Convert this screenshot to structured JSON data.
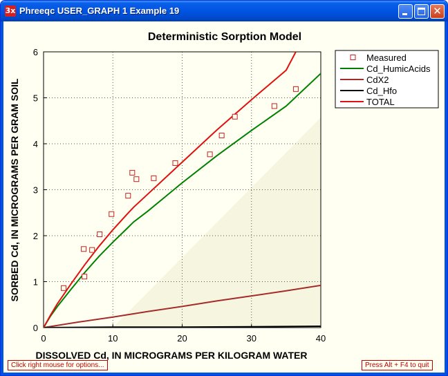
{
  "window": {
    "icon_text": "3x",
    "title": "Phreeqc USER_GRAPH 1 Example 19"
  },
  "status": {
    "left": "Click right mouse for options...",
    "right": "Press Alt + F4 to quit"
  },
  "colors": {
    "background": "#fffff2",
    "measured": "#c81e1e",
    "humic": "#008000",
    "cdx2": "#a52a2a",
    "hfo": "#000000",
    "total": "#e01010",
    "shade": "#f6f6e0"
  },
  "chart_data": {
    "type": "line",
    "title": "Deterministic Sorption Model",
    "xlabel": "DISSOLVED Cd, IN MICROGRAMS PER KILOGRAM WATER",
    "ylabel": "SORBED Cd, IN MICROGRAMS PER GRAM SOIL",
    "xlim": [
      0,
      40
    ],
    "ylim": [
      0,
      6
    ],
    "xticks": [
      0,
      10,
      20,
      30,
      40
    ],
    "yticks": [
      0,
      1,
      2,
      3,
      4,
      5,
      6
    ],
    "grid": true,
    "legend_position": "top-right outside",
    "series": [
      {
        "name": "Measured",
        "kind": "markers",
        "color": "#c81e1e",
        "x": [
          2.9,
          5.8,
          5.9,
          7.0,
          8.1,
          9.8,
          12.2,
          12.8,
          13.4,
          15.9,
          19.0,
          24.0,
          25.7,
          27.6,
          33.3,
          36.4
        ],
        "y": [
          0.86,
          1.71,
          1.11,
          1.69,
          2.03,
          2.47,
          2.87,
          3.37,
          3.23,
          3.25,
          3.58,
          3.77,
          4.18,
          4.59,
          4.82,
          5.19
        ]
      },
      {
        "name": "Cd_HumicAcids",
        "kind": "line",
        "color": "#008000",
        "x": [
          0,
          1,
          2,
          4,
          6,
          8,
          10,
          12,
          13,
          15,
          20,
          25,
          30,
          35,
          40
        ],
        "y": [
          0,
          0.25,
          0.46,
          0.84,
          1.21,
          1.55,
          1.86,
          2.15,
          2.3,
          2.53,
          3.15,
          3.74,
          4.29,
          4.82,
          5.53
        ]
      },
      {
        "name": "CdX2",
        "kind": "line",
        "color": "#a52a2a",
        "x": [
          0,
          5,
          10,
          15,
          20,
          25,
          30,
          35,
          40
        ],
        "y": [
          0,
          0.12,
          0.23,
          0.35,
          0.46,
          0.58,
          0.69,
          0.8,
          0.92
        ]
      },
      {
        "name": "Cd_Hfo",
        "kind": "line",
        "color": "#000000",
        "x": [
          0,
          10,
          20,
          30,
          40
        ],
        "y": [
          0,
          0.01,
          0.01,
          0.02,
          0.03
        ]
      },
      {
        "name": "TOTAL",
        "kind": "line",
        "color": "#e01010",
        "x": [
          0,
          1,
          2,
          4,
          6,
          8,
          10,
          12,
          13,
          15,
          20,
          25,
          30,
          35,
          36.4
        ],
        "y": [
          0,
          0.27,
          0.52,
          0.96,
          1.38,
          1.77,
          2.13,
          2.46,
          2.62,
          2.9,
          3.6,
          4.3,
          4.96,
          5.6,
          6.0
        ]
      }
    ]
  }
}
